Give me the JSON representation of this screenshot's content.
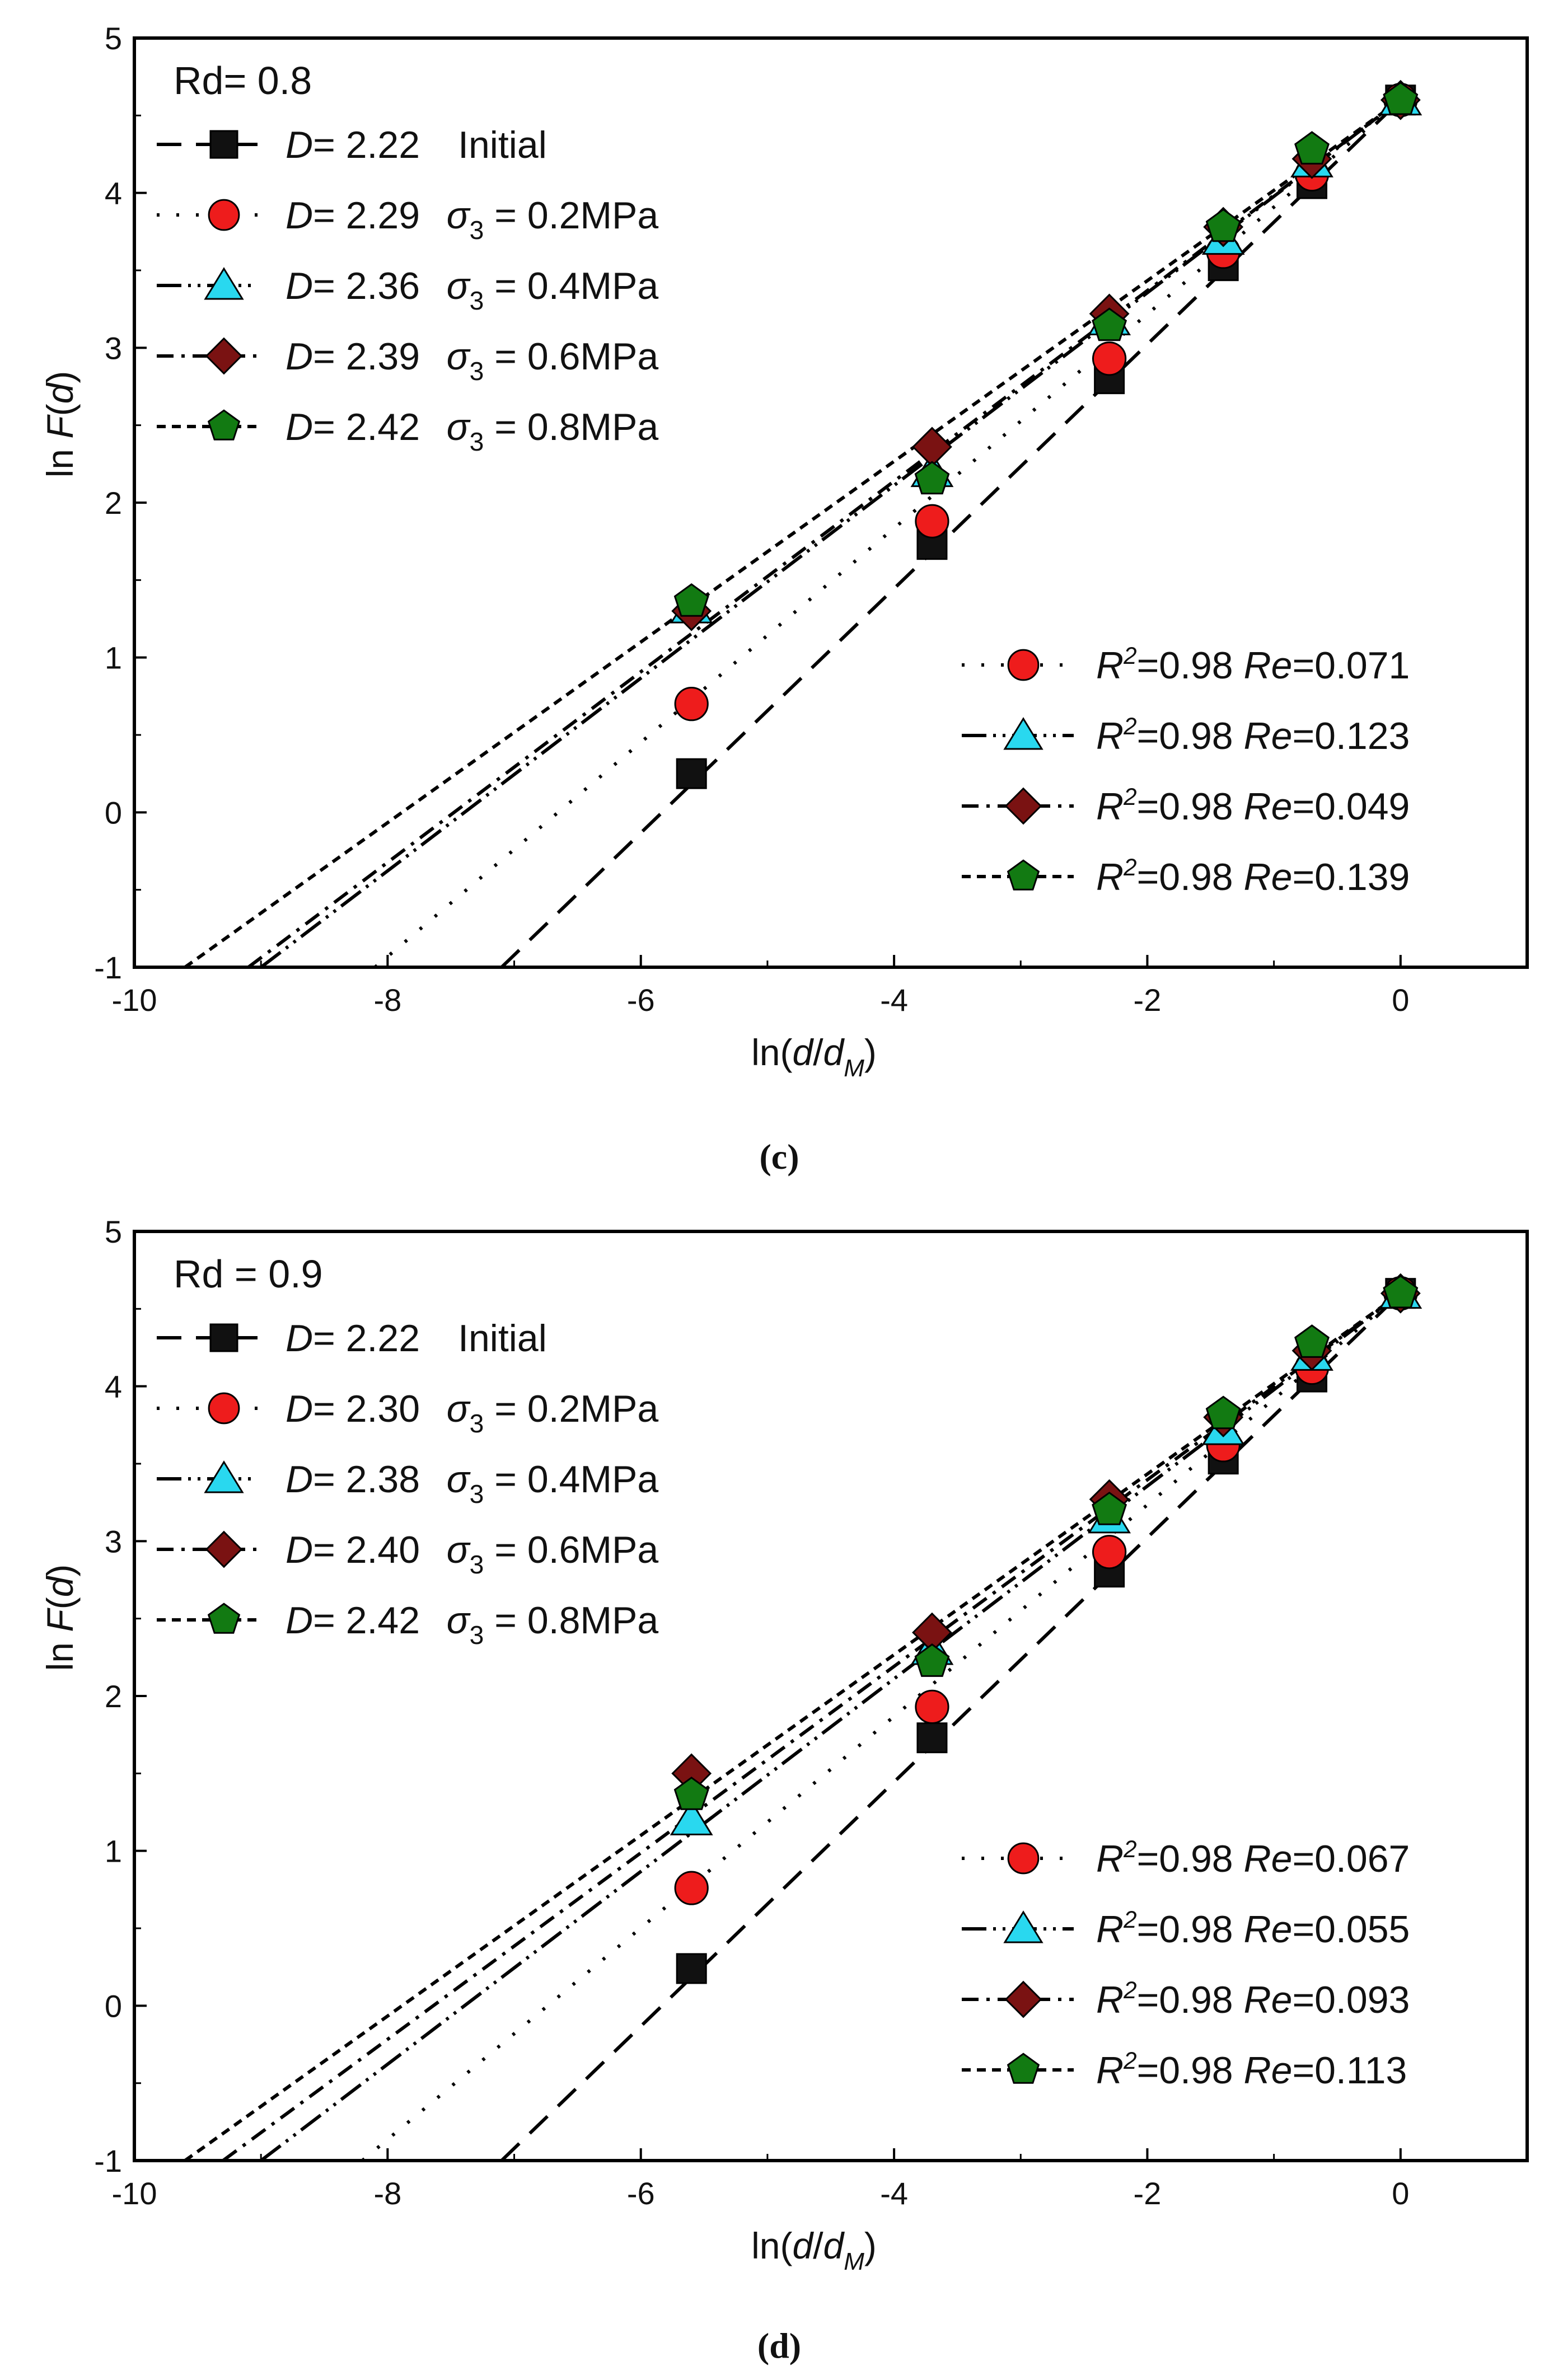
{
  "chart_data": [
    {
      "type": "scatter",
      "panel_caption": "(c)",
      "panel_label": "Rd= 0.8",
      "xlabel": "ln(d/d_M)",
      "ylabel": "ln F(d)",
      "xlim": [
        -10,
        1
      ],
      "ylim": [
        -1,
        5
      ],
      "xticks": [
        "-10",
        "-8",
        "-6",
        "-4",
        "-2",
        "0"
      ],
      "yticks": [
        "-1",
        "0",
        "1",
        "2",
        "3",
        "4",
        "5"
      ],
      "x": [
        -5.6,
        -3.7,
        -2.3,
        -1.4,
        -0.7,
        0
      ],
      "series": [
        {
          "name": "Initial",
          "D": "2.22",
          "condition": "Initial",
          "marker": "square",
          "color": "#111111",
          "values": [
            0.25,
            1.73,
            2.8,
            3.53,
            4.06,
            4.6
          ],
          "fit": {
            "x0": -7.1,
            "y0": -1.0,
            "x1": 0,
            "y1": 4.6
          },
          "dash": "44 26"
        },
        {
          "name": "0.2MPa",
          "D": "2.29",
          "condition": " = 0.2MPa",
          "marker": "circle",
          "color": "#ee1c1c",
          "values": [
            0.7,
            1.88,
            2.93,
            3.62,
            4.12,
            4.6
          ],
          "fit": {
            "x0": -8.1,
            "y0": -1.0,
            "x1": 0,
            "y1": 4.6
          },
          "dash": "5 30",
          "R2": "0.98",
          "Re": "0.071"
        },
        {
          "name": "0.4MPa",
          "D": "2.36",
          "condition": " = 0.4MPa",
          "marker": "triangle",
          "color": "#29d8ef",
          "values": [
            1.32,
            2.2,
            3.18,
            3.7,
            4.2,
            4.6
          ],
          "fit": {
            "x0": -9.0,
            "y0": -1.0,
            "x1": 0,
            "y1": 4.6
          },
          "dash": "44 12 5 12 5 12",
          "R2": "0.98",
          "Re": "0.123"
        },
        {
          "name": "0.6MPa",
          "D": "2.39",
          "condition": " = 0.6MPa",
          "marker": "diamond",
          "color": "#7a1212",
          "values": [
            1.3,
            2.36,
            3.22,
            3.78,
            4.22,
            4.6
          ],
          "fit": {
            "x0": -9.1,
            "y0": -1.0,
            "x1": 0,
            "y1": 4.6
          },
          "dash": "30 14 6 14",
          "R2": "0.98",
          "Re": "0.049"
        },
        {
          "name": "0.8MPa",
          "D": "2.42",
          "condition": " = 0.8MPa",
          "marker": "pentagon",
          "color": "#127a12",
          "values": [
            1.36,
            2.15,
            3.14,
            3.78,
            4.28,
            4.6
          ],
          "fit": {
            "x0": -9.6,
            "y0": -1.0,
            "x1": 0,
            "y1": 4.6
          },
          "dash": "16 11",
          "R2": "0.98",
          "Re": "0.139"
        }
      ]
    },
    {
      "type": "scatter",
      "panel_caption": "(d)",
      "panel_label": "Rd = 0.9",
      "xlabel": "ln(d/d_M)",
      "ylabel": "ln F(d)",
      "xlim": [
        -10,
        1
      ],
      "ylim": [
        -1,
        5
      ],
      "xticks": [
        "-10",
        "-8",
        "-6",
        "-4",
        "-2",
        "0"
      ],
      "yticks": [
        "-1",
        "0",
        "1",
        "2",
        "3",
        "4",
        "5"
      ],
      "x": [
        -5.6,
        -3.7,
        -2.3,
        -1.4,
        -0.7,
        0
      ],
      "series": [
        {
          "name": "Initial",
          "D": "2.22",
          "condition": "Initial",
          "marker": "square",
          "color": "#111111",
          "values": [
            0.24,
            1.73,
            2.8,
            3.53,
            4.06,
            4.6
          ],
          "fit": {
            "x0": -7.1,
            "y0": -1.0,
            "x1": 0,
            "y1": 4.6
          },
          "dash": "44 26"
        },
        {
          "name": "0.2MPa",
          "D": "2.30",
          "condition": " = 0.2MPa",
          "marker": "circle",
          "color": "#ee1c1c",
          "values": [
            0.76,
            1.93,
            2.93,
            3.62,
            4.12,
            4.6
          ],
          "fit": {
            "x0": -8.2,
            "y0": -1.0,
            "x1": 0,
            "y1": 4.6
          },
          "dash": "5 30",
          "R2": "0.98",
          "Re": "0.067"
        },
        {
          "name": "0.4MPa",
          "D": "2.38",
          "condition": " = 0.4MPa",
          "marker": "triangle",
          "color": "#29d8ef",
          "values": [
            1.2,
            2.3,
            3.15,
            3.72,
            4.2,
            4.6
          ],
          "fit": {
            "x0": -9.0,
            "y0": -1.0,
            "x1": 0,
            "y1": 4.6
          },
          "dash": "44 12 5 12 5 12",
          "R2": "0.98",
          "Re": "0.055"
        },
        {
          "name": "0.6MPa",
          "D": "2.40",
          "condition": " = 0.6MPa",
          "marker": "diamond",
          "color": "#7a1212",
          "values": [
            1.5,
            2.41,
            3.27,
            3.8,
            4.23,
            4.6
          ],
          "fit": {
            "x0": -9.3,
            "y0": -1.0,
            "x1": 0,
            "y1": 4.6
          },
          "dash": "30 14 6 14",
          "R2": "0.98",
          "Re": "0.093"
        },
        {
          "name": "0.8MPa",
          "D": "2.42",
          "condition": " = 0.8MPa",
          "marker": "pentagon",
          "color": "#127a12",
          "values": [
            1.36,
            2.22,
            3.2,
            3.82,
            4.28,
            4.6
          ],
          "fit": {
            "x0": -9.6,
            "y0": -1.0,
            "x1": 0,
            "y1": 4.6
          },
          "dash": "16 11",
          "R2": "0.98",
          "Re": "0.113"
        }
      ]
    }
  ]
}
